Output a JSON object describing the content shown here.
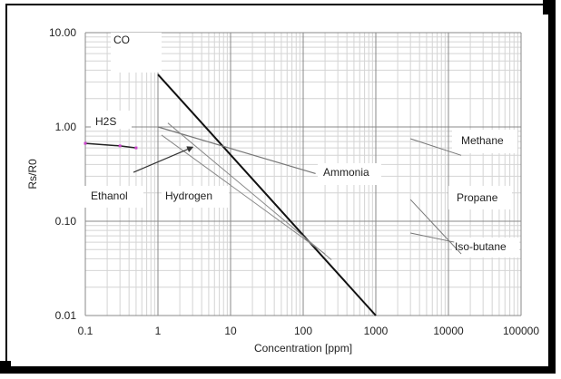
{
  "chart_data": {
    "type": "line",
    "title": "",
    "xlabel": "Concentration [ppm]",
    "ylabel": "Rs/R0",
    "xscale": "log",
    "yscale": "log",
    "xlim": [
      0.1,
      100000
    ],
    "ylim": [
      0.01,
      10
    ],
    "grid": true,
    "xticks": [
      "0.1",
      "1",
      "10",
      "100",
      "1000",
      "10000",
      "100000"
    ],
    "yticks": [
      "0.01",
      "0.10",
      "1.00",
      "10.00"
    ],
    "series": [
      {
        "name": "CO",
        "label": "CO",
        "points": [
          [
            1,
            3.6
          ],
          [
            1000,
            0.01
          ]
        ],
        "color": "#111111",
        "width": 2
      },
      {
        "name": "H2S",
        "label": "H2S",
        "points": [
          [
            0.1,
            0.67
          ],
          [
            0.3,
            0.63
          ],
          [
            0.5,
            0.6
          ]
        ],
        "color": "#222222",
        "width": 1.5,
        "markers": "#cc44cc"
      },
      {
        "name": "Ammonia",
        "label": "Ammonia",
        "points": [
          [
            1,
            1.0
          ],
          [
            148,
            0.32
          ]
        ],
        "color": "#777777",
        "width": 1.2
      },
      {
        "name": "Hydrogen",
        "label": "Hydrogen",
        "points": [
          [
            1.37,
            1.1
          ],
          [
            245,
            0.039
          ]
        ],
        "color": "#888888",
        "width": 1
      },
      {
        "name": "Ethanol",
        "label": "Ethanol",
        "points": [
          [
            1.12,
            0.82
          ],
          [
            200,
            0.045
          ]
        ],
        "color": "#888888",
        "width": 1
      },
      {
        "name": "Methane",
        "label": "Methane",
        "points": [
          [
            3000,
            0.75
          ],
          [
            15000,
            0.5
          ]
        ],
        "color": "#777777",
        "width": 1
      },
      {
        "name": "Propane",
        "label": "Propane",
        "points": [
          [
            3000,
            0.17
          ],
          [
            15000,
            0.045
          ]
        ],
        "color": "#777777",
        "width": 1
      },
      {
        "name": "Iso-butane",
        "label": "Iso-butane",
        "points": [
          [
            3000,
            0.075
          ],
          [
            12000,
            0.06
          ]
        ],
        "color": "#777777",
        "width": 1
      }
    ],
    "annotations": [
      {
        "from": [
          0.46,
          0.33
        ],
        "to": [
          3.0,
          0.61
        ]
      }
    ]
  }
}
